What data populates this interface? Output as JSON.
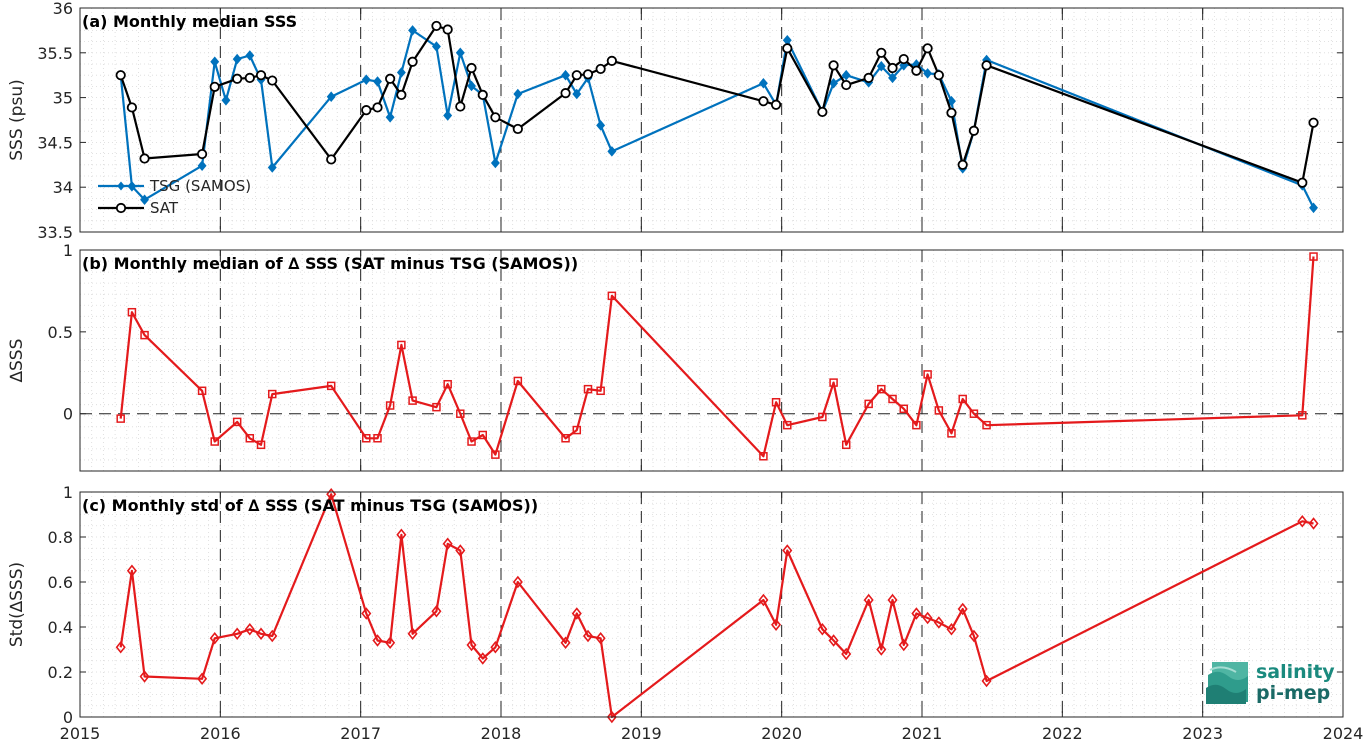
{
  "chart_data": [
    {
      "type": "line",
      "title": "(a) Monthly median SSS",
      "ylabel": "SSS (psu)",
      "ylim": [
        33.5,
        36
      ],
      "yticks": [
        "33.5",
        "34",
        "34.5",
        "35",
        "35.5",
        "36"
      ],
      "xlim": [
        2015,
        2024
      ],
      "xticks": [
        "2015",
        "2016",
        "2017",
        "2018",
        "2019",
        "2020",
        "2021",
        "2022",
        "2023",
        "2024"
      ],
      "legend_placement": "lower-left",
      "grid": "dotted minor",
      "series": [
        {
          "name": "TSG (SAMOS)",
          "color": "#0072bd",
          "marker": "diamond",
          "x": [
            2015.29,
            2015.37,
            2015.46,
            2015.87,
            2015.96,
            2016.04,
            2016.12,
            2016.21,
            2016.29,
            2016.37,
            2016.79,
            2017.04,
            2017.12,
            2017.21,
            2017.29,
            2017.37,
            2017.54,
            2017.62,
            2017.71,
            2017.79,
            2017.87,
            2017.96,
            2018.12,
            2018.46,
            2018.54,
            2018.62,
            2018.71,
            2018.79,
            2019.87,
            2019.96,
            2020.04,
            2020.29,
            2020.37,
            2020.46,
            2020.62,
            2020.71,
            2020.79,
            2020.87,
            2020.96,
            2021.04,
            2021.12,
            2021.21,
            2021.29,
            2021.37,
            2021.46,
            2023.71,
            2023.79
          ],
          "y": [
            35.25,
            34.01,
            33.86,
            34.24,
            35.4,
            34.97,
            35.43,
            35.47,
            35.2,
            34.22,
            35.01,
            35.2,
            35.18,
            34.78,
            35.28,
            35.75,
            35.57,
            34.8,
            35.5,
            35.13,
            35.03,
            34.27,
            35.04,
            35.25,
            35.04,
            35.22,
            34.69,
            34.4,
            35.16,
            34.92,
            35.64,
            34.84,
            35.16,
            35.25,
            35.17,
            35.35,
            35.22,
            35.36,
            35.37,
            35.27,
            35.26,
            34.96,
            34.21,
            34.63,
            35.42,
            34.02,
            33.77
          ]
        },
        {
          "name": "SAT",
          "color": "#000000",
          "marker": "circle",
          "x": [
            2015.29,
            2015.37,
            2015.46,
            2015.87,
            2015.96,
            2016.12,
            2016.21,
            2016.29,
            2016.37,
            2016.79,
            2017.04,
            2017.12,
            2017.21,
            2017.29,
            2017.37,
            2017.54,
            2017.62,
            2017.71,
            2017.79,
            2017.87,
            2017.96,
            2018.12,
            2018.46,
            2018.54,
            2018.62,
            2018.71,
            2018.79,
            2019.87,
            2019.96,
            2020.04,
            2020.29,
            2020.37,
            2020.46,
            2020.62,
            2020.71,
            2020.79,
            2020.87,
            2020.96,
            2021.04,
            2021.12,
            2021.21,
            2021.29,
            2021.37,
            2021.46,
            2023.71,
            2023.79
          ],
          "y": [
            35.25,
            34.89,
            34.32,
            34.37,
            35.12,
            35.21,
            35.22,
            35.25,
            35.19,
            34.31,
            34.86,
            34.89,
            35.21,
            35.03,
            35.4,
            35.8,
            35.76,
            34.9,
            35.33,
            35.03,
            34.78,
            34.65,
            35.05,
            35.25,
            35.26,
            35.32,
            35.41,
            34.96,
            34.92,
            35.55,
            34.84,
            35.36,
            35.14,
            35.22,
            35.5,
            35.33,
            35.43,
            35.3,
            35.55,
            35.25,
            34.83,
            34.25,
            34.63,
            35.36,
            34.05,
            34.72
          ]
        }
      ]
    },
    {
      "type": "line",
      "title": "(b) Monthly median of ∆ SSS (SAT minus TSG (SAMOS))",
      "ylabel": "∆SSS",
      "ylim": [
        -0.35,
        1
      ],
      "yticks": [
        "0",
        "0.5",
        "1"
      ],
      "xlim": [
        2015,
        2024
      ],
      "grid": "dotted minor",
      "reference_line": 0,
      "series": [
        {
          "color": "#e41a1c",
          "marker": "square",
          "x": [
            2015.29,
            2015.37,
            2015.46,
            2015.87,
            2015.96,
            2016.12,
            2016.21,
            2016.29,
            2016.37,
            2016.79,
            2017.04,
            2017.12,
            2017.21,
            2017.29,
            2017.37,
            2017.54,
            2017.62,
            2017.71,
            2017.79,
            2017.87,
            2017.96,
            2018.12,
            2018.46,
            2018.54,
            2018.62,
            2018.71,
            2018.79,
            2019.87,
            2019.96,
            2020.04,
            2020.29,
            2020.37,
            2020.46,
            2020.62,
            2020.71,
            2020.79,
            2020.87,
            2020.96,
            2021.04,
            2021.12,
            2021.21,
            2021.29,
            2021.37,
            2021.46,
            2023.71,
            2023.79
          ],
          "y": [
            -0.03,
            0.62,
            0.48,
            0.14,
            -0.17,
            -0.05,
            -0.15,
            -0.19,
            0.12,
            0.17,
            -0.15,
            -0.15,
            0.05,
            0.42,
            0.08,
            0.04,
            0.18,
            0.0,
            -0.17,
            -0.13,
            -0.25,
            0.2,
            -0.15,
            -0.1,
            0.15,
            0.14,
            0.72,
            -0.26,
            0.07,
            -0.07,
            -0.02,
            0.19,
            -0.19,
            0.06,
            0.15,
            0.09,
            0.03,
            -0.07,
            0.24,
            0.02,
            -0.12,
            0.09,
            0.0,
            -0.07,
            -0.01,
            0.96
          ]
        }
      ]
    },
    {
      "type": "line",
      "title": "(c) Monthly std of ∆ SSS (SAT minus TSG (SAMOS))",
      "ylabel": "Std(∆SSS)",
      "ylim": [
        0,
        1
      ],
      "yticks": [
        "0",
        "0.2",
        "0.4",
        "0.6",
        "0.8",
        "1"
      ],
      "xlim": [
        2015,
        2024
      ],
      "xticks": [
        "2015",
        "2016",
        "2017",
        "2018",
        "2019",
        "2020",
        "2021",
        "2022",
        "2023",
        "2024"
      ],
      "grid": "dotted minor",
      "series": [
        {
          "color": "#e41a1c",
          "marker": "diamond",
          "x": [
            2015.29,
            2015.37,
            2015.46,
            2015.87,
            2015.96,
            2016.12,
            2016.21,
            2016.29,
            2016.37,
            2016.79,
            2017.04,
            2017.12,
            2017.21,
            2017.29,
            2017.37,
            2017.54,
            2017.62,
            2017.71,
            2017.79,
            2017.87,
            2017.96,
            2018.12,
            2018.46,
            2018.54,
            2018.62,
            2018.71,
            2018.79,
            2019.87,
            2019.96,
            2020.04,
            2020.29,
            2020.37,
            2020.46,
            2020.62,
            2020.71,
            2020.79,
            2020.87,
            2020.96,
            2021.04,
            2021.12,
            2021.21,
            2021.29,
            2021.37,
            2021.46,
            2023.71,
            2023.79
          ],
          "y": [
            0.31,
            0.65,
            0.18,
            0.17,
            0.35,
            0.37,
            0.39,
            0.37,
            0.36,
            0.99,
            0.46,
            0.34,
            0.33,
            0.81,
            0.37,
            0.47,
            0.77,
            0.74,
            0.32,
            0.26,
            0.31,
            0.6,
            0.33,
            0.46,
            0.36,
            0.35,
            0.0,
            0.52,
            0.41,
            0.74,
            0.39,
            0.34,
            0.28,
            0.52,
            0.3,
            0.52,
            0.32,
            0.46,
            0.44,
            0.42,
            0.39,
            0.48,
            0.36,
            0.16,
            0.87,
            0.86
          ]
        }
      ]
    }
  ],
  "logo": {
    "line1": "salinity",
    "line2": "pi-mep"
  }
}
